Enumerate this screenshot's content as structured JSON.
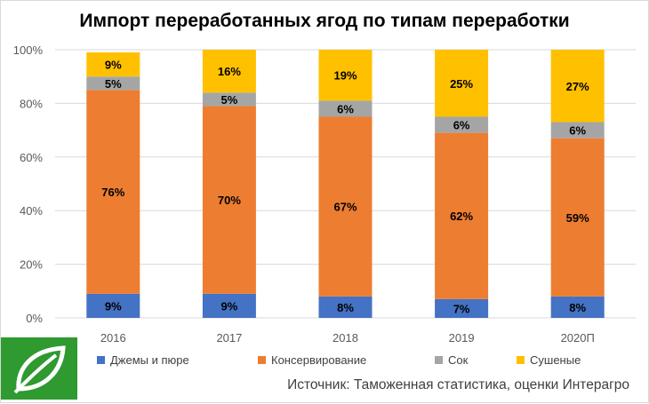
{
  "title": "Импорт переработанных ягод по типам переработки",
  "source": "Источник: Таможенная статистика, оценки Интерагро",
  "logo_icon": "leaf-logo-icon",
  "colors": {
    "Джемы и пюре": "#4472c4",
    "Консервирование": "#ed7d31",
    "Сок": "#a5a5a5",
    "Сушеные": "#ffc000",
    "grid": "#d9d9d9",
    "logo": "#2e9a30"
  },
  "chart_data": {
    "type": "bar",
    "stacked": true,
    "percent": true,
    "categories": [
      "2016",
      "2017",
      "2018",
      "2019",
      "2020П"
    ],
    "series": [
      {
        "name": "Джемы и пюре",
        "values": [
          9,
          9,
          8,
          7,
          8
        ]
      },
      {
        "name": "Консервирование",
        "values": [
          76,
          70,
          67,
          62,
          59
        ]
      },
      {
        "name": "Сок",
        "values": [
          5,
          5,
          6,
          6,
          6
        ]
      },
      {
        "name": "Сушеные",
        "values": [
          9,
          16,
          19,
          25,
          27
        ]
      }
    ],
    "data_labels": [
      [
        "9%",
        "9%",
        "8%",
        "7%",
        "8%"
      ],
      [
        "76%",
        "70%",
        "67%",
        "62%",
        "59%"
      ],
      [
        "5%",
        "5%",
        "6%",
        "6%",
        "6%"
      ],
      [
        "9%",
        "16%",
        "19%",
        "25%",
        "27%"
      ]
    ],
    "yticks": [
      "0%",
      "20%",
      "40%",
      "60%",
      "80%",
      "100%"
    ],
    "ylim": [
      0,
      100
    ],
    "grid": true,
    "legend_position": "bottom"
  }
}
